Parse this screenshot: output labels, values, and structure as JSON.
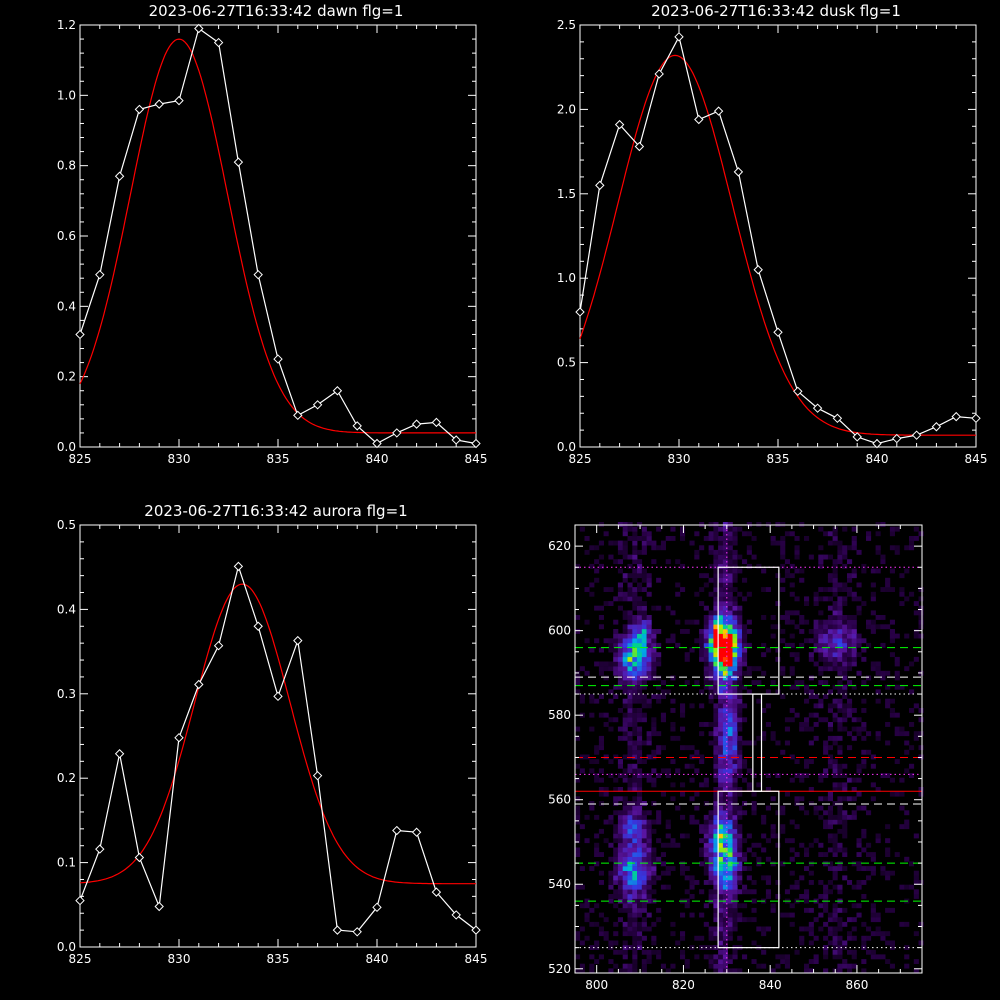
{
  "colors": {
    "background": "#000000",
    "axes": "#ffffff",
    "data_line": "#ffffff",
    "fit_line": "#ff0000",
    "green_lines": "#00ff00",
    "red_lines": "#ff0000",
    "magenta_lines": "#ff33ff"
  },
  "chart_data": [
    {
      "id": "dawn",
      "type": "line",
      "title": "2023-06-27T16:33:42 dawn flg=1",
      "xlim": [
        825,
        845
      ],
      "ylim": [
        0,
        1.2
      ],
      "xticks": [
        "825",
        "830",
        "835",
        "840",
        "845"
      ],
      "yticks": [
        "0.0",
        "0.2",
        "0.4",
        "0.6",
        "0.8",
        "1.0",
        "1.2"
      ],
      "series": [
        {
          "role": "data",
          "marker": "diamond",
          "x": [
            825,
            826,
            827,
            828,
            829,
            830,
            831,
            832,
            833,
            834,
            835,
            836,
            837,
            838,
            839,
            840,
            841,
            842,
            843,
            844,
            845
          ],
          "y": [
            0.32,
            0.49,
            0.77,
            0.96,
            0.975,
            0.985,
            1.19,
            1.15,
            0.81,
            0.49,
            0.25,
            0.09,
            0.12,
            0.16,
            0.06,
            0.01,
            0.04,
            0.065,
            0.07,
            0.02,
            0.01
          ]
        },
        {
          "role": "fit",
          "gauss": {
            "peak": 1.16,
            "center": 830.0,
            "sigma": 2.45,
            "offset": 0.04
          }
        }
      ]
    },
    {
      "id": "dusk",
      "type": "line",
      "title": "2023-06-27T16:33:42 dusk flg=1",
      "xlim": [
        825,
        845
      ],
      "ylim": [
        0,
        2.5
      ],
      "xticks": [
        "825",
        "830",
        "835",
        "840",
        "845"
      ],
      "yticks": [
        "0.0",
        "0.5",
        "1.0",
        "1.5",
        "2.0",
        "2.5"
      ],
      "series": [
        {
          "role": "data",
          "marker": "diamond",
          "x": [
            825,
            826,
            827,
            828,
            829,
            830,
            831,
            832,
            833,
            834,
            835,
            836,
            837,
            838,
            839,
            840,
            841,
            842,
            843,
            844,
            845
          ],
          "y": [
            0.8,
            1.55,
            1.91,
            1.78,
            2.21,
            2.43,
            1.94,
            1.99,
            1.63,
            1.05,
            0.68,
            0.33,
            0.23,
            0.17,
            0.06,
            0.02,
            0.05,
            0.07,
            0.12,
            0.18,
            0.17
          ]
        },
        {
          "role": "fit",
          "gauss": {
            "peak": 2.32,
            "center": 829.8,
            "sigma": 2.9,
            "offset": 0.07
          }
        }
      ]
    },
    {
      "id": "aurora",
      "type": "line",
      "title": "2023-06-27T16:33:42 aurora flg=1",
      "xlim": [
        825,
        845
      ],
      "ylim": [
        0,
        0.5
      ],
      "xticks": [
        "825",
        "830",
        "835",
        "840",
        "845"
      ],
      "yticks": [
        "0.0",
        "0.1",
        "0.2",
        "0.3",
        "0.4",
        "0.5"
      ],
      "series": [
        {
          "role": "data",
          "marker": "diamond",
          "x": [
            825,
            826,
            827,
            828,
            829,
            830,
            831,
            832,
            833,
            834,
            835,
            836,
            837,
            838,
            839,
            840,
            841,
            842,
            843,
            844,
            845
          ],
          "y": [
            0.055,
            0.116,
            0.229,
            0.106,
            0.048,
            0.248,
            0.311,
            0.357,
            0.451,
            0.38,
            0.297,
            0.363,
            0.203,
            0.02,
            0.018,
            0.047,
            0.138,
            0.136,
            0.065,
            0.038,
            0.02
          ]
        },
        {
          "role": "fit",
          "gauss": {
            "peak": 0.43,
            "center": 833.2,
            "sigma": 2.4,
            "offset": 0.075
          }
        }
      ]
    },
    {
      "id": "image",
      "type": "heatmap",
      "title": "",
      "xlim": [
        795,
        875
      ],
      "ylim": [
        519,
        625
      ],
      "xticks": [
        "800",
        "820",
        "840",
        "860"
      ],
      "yticks": [
        "520",
        "540",
        "560",
        "580",
        "600",
        "620"
      ],
      "colormap": "black-purple-blue-cyan-green-yellow-red",
      "hot_spots": [
        {
          "x": 829,
          "y": 595,
          "sx": 2.0,
          "sy": 4.0,
          "peak": 1.0
        },
        {
          "x": 828,
          "y": 598,
          "sx": 2.0,
          "sy": 3.0,
          "peak": 0.6
        },
        {
          "x": 808,
          "y": 593,
          "sx": 2.5,
          "sy": 3.0,
          "peak": 0.55
        },
        {
          "x": 810,
          "y": 599,
          "sx": 1.5,
          "sy": 2.0,
          "peak": 0.4
        },
        {
          "x": 829,
          "y": 544,
          "sx": 2.0,
          "sy": 4.0,
          "peak": 0.5
        },
        {
          "x": 828,
          "y": 551,
          "sx": 2.0,
          "sy": 3.0,
          "peak": 0.4
        },
        {
          "x": 808,
          "y": 543,
          "sx": 2.5,
          "sy": 4.0,
          "peak": 0.42
        },
        {
          "x": 808,
          "y": 553,
          "sx": 2.0,
          "sy": 2.5,
          "peak": 0.28
        },
        {
          "x": 855,
          "y": 597,
          "sx": 3.0,
          "sy": 3.0,
          "peak": 0.25
        },
        {
          "x": 830,
          "y": 575,
          "sx": 1.5,
          "sy": 8.0,
          "peak": 0.28
        }
      ],
      "boxes": [
        {
          "x0": 828,
          "x1": 842,
          "y0": 585,
          "y1": 615
        },
        {
          "x0": 836,
          "x1": 838,
          "y0": 562,
          "y1": 585
        },
        {
          "x0": 828,
          "x1": 842,
          "y0": 525,
          "y1": 562
        }
      ],
      "vlines": [
        {
          "x": 830,
          "color": "#ff33ff",
          "style": "dotted"
        }
      ],
      "hlines": [
        {
          "y": 615,
          "color": "#ff33ff",
          "style": "dotted"
        },
        {
          "y": 596,
          "color": "#00ff00",
          "style": "dashed"
        },
        {
          "y": 589,
          "color": "#ffffff",
          "style": "dashed"
        },
        {
          "y": 587,
          "color": "#00ff00",
          "style": "dashed"
        },
        {
          "y": 585,
          "color": "#ffffff",
          "style": "dotted"
        },
        {
          "y": 570,
          "color": "#ff0000",
          "style": "dashed"
        },
        {
          "y": 566,
          "color": "#ff33ff",
          "style": "dotted"
        },
        {
          "y": 562,
          "color": "#ff0000",
          "style": "solid"
        },
        {
          "y": 559,
          "color": "#ffffff",
          "style": "dashed"
        },
        {
          "y": 545,
          "color": "#00ff00",
          "style": "dashed"
        },
        {
          "y": 536,
          "color": "#00ff00",
          "style": "dashed"
        },
        {
          "y": 525,
          "color": "#ffffff",
          "style": "dotted"
        }
      ]
    }
  ]
}
